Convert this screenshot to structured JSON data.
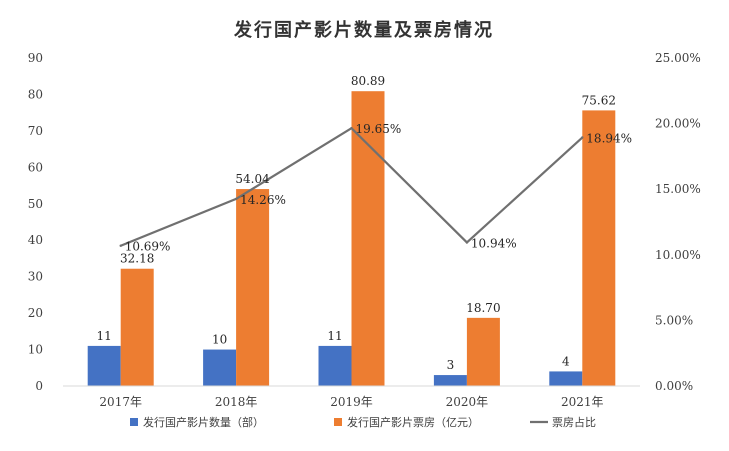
{
  "chart_data": {
    "type": "bar",
    "title": "发行国产影片数量及票房情况",
    "categories": [
      "2017年",
      "2018年",
      "2019年",
      "2020年",
      "2021年"
    ],
    "ylim": [
      0,
      90
    ],
    "y_ticks": [
      "0",
      "10",
      "20",
      "30",
      "40",
      "50",
      "60",
      "70",
      "80",
      "90"
    ],
    "y2lim": [
      0,
      25
    ],
    "y2_ticks": [
      "0.00%",
      "5.00%",
      "10.00%",
      "15.00%",
      "20.00%",
      "25.00%"
    ],
    "legend_position": "bottom",
    "grid": false,
    "series": [
      {
        "name": "发行国产影片数量（部）",
        "type": "bar",
        "axis": "left",
        "color": "#4472C4",
        "values": [
          11,
          10,
          11,
          3,
          4
        ],
        "labels": [
          "11",
          "10",
          "11",
          "3",
          "4"
        ]
      },
      {
        "name": "发行国产影片票房（亿元）",
        "type": "bar",
        "axis": "left",
        "color": "#ED7D31",
        "values": [
          32.18,
          54.04,
          80.89,
          18.7,
          75.62
        ],
        "labels": [
          "32.18",
          "54.04",
          "80.89",
          "18.70",
          "75.62"
        ]
      },
      {
        "name": "票房占比",
        "type": "line",
        "axis": "right",
        "color": "#707070",
        "values": [
          10.69,
          14.26,
          19.65,
          10.94,
          18.94
        ],
        "labels": [
          "10.69%",
          "14.26%",
          "19.65%",
          "10.94%",
          "18.94%"
        ]
      }
    ]
  }
}
